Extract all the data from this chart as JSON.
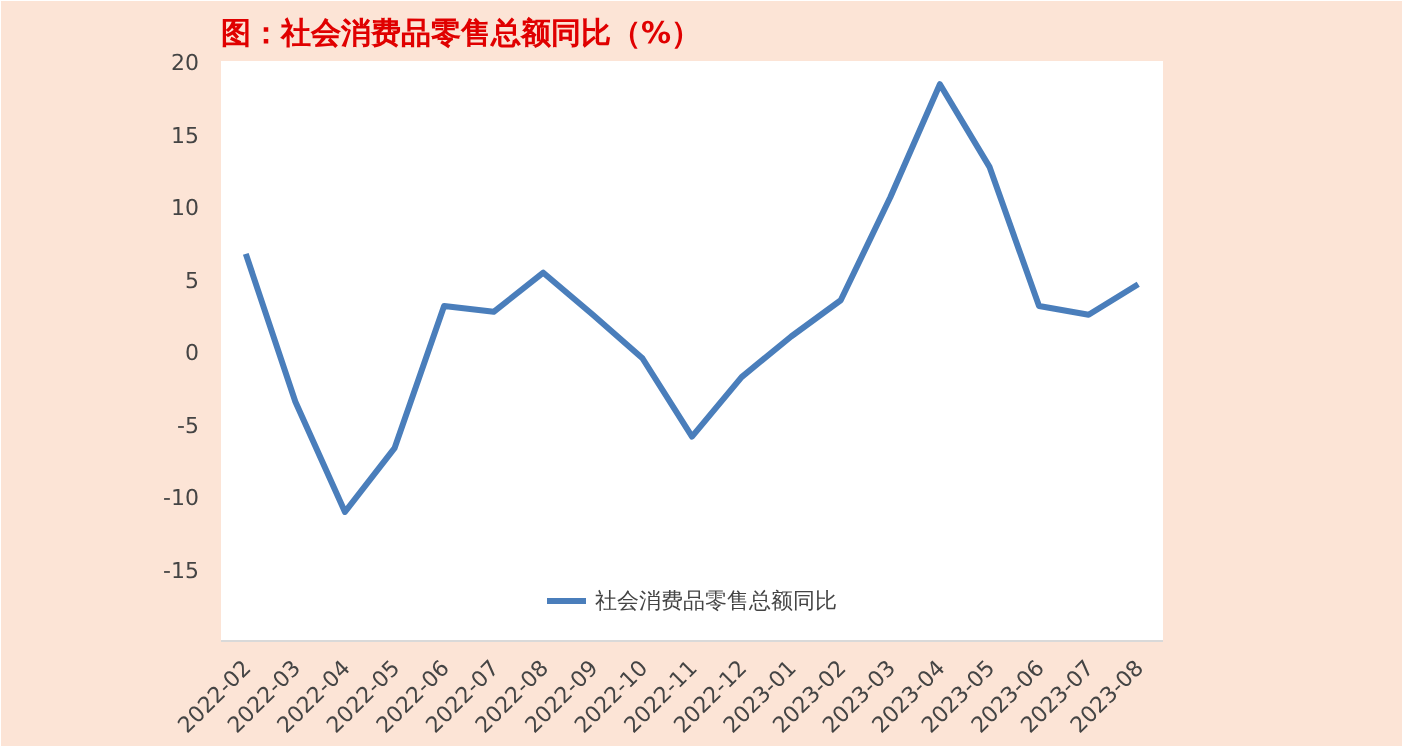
{
  "chart_data": {
    "type": "line",
    "title": "图：社会消费品零售总额同比（%）",
    "categories": [
      "2022-02",
      "2022-03",
      "2022-04",
      "2022-05",
      "2022-06",
      "2022-07",
      "2022-08",
      "2022-09",
      "2022-10",
      "2022-11",
      "2022-12",
      "2023-01",
      "2023-02",
      "2023-03",
      "2023-04",
      "2023-05",
      "2023-06",
      "2023-07",
      "2023-08"
    ],
    "series": [
      {
        "name": "社会消费品零售总额同比",
        "color": "#4a7ebb",
        "values": [
          6.7,
          -3.5,
          -11.1,
          -6.7,
          3.1,
          2.7,
          5.4,
          2.5,
          -0.5,
          -5.9,
          -1.8,
          1.0,
          3.5,
          10.6,
          18.4,
          12.7,
          3.1,
          2.5,
          4.6
        ]
      }
    ],
    "ylim": [
      -20,
      20
    ],
    "yticks": [
      -15,
      -10,
      -5,
      0,
      5,
      10,
      15,
      20
    ],
    "grid": false,
    "legend": "bottom",
    "line_style": "solid",
    "marker": "none"
  }
}
